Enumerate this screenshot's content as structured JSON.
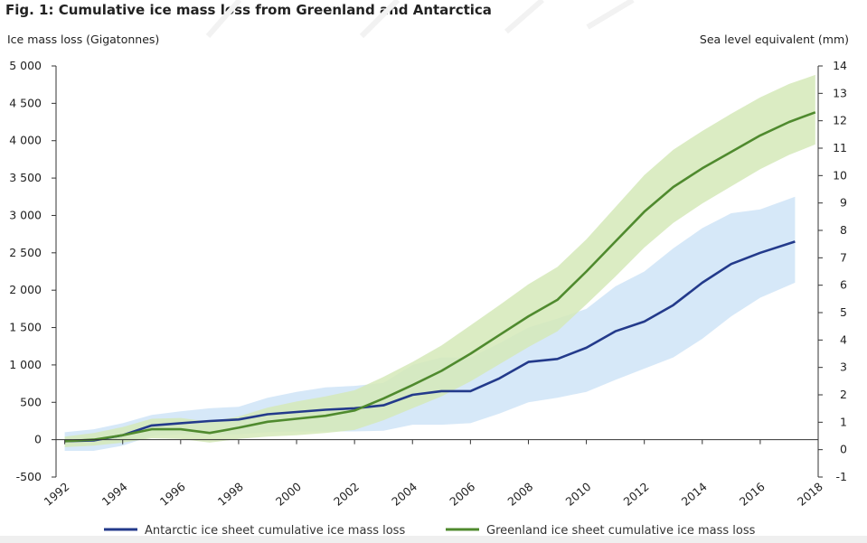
{
  "chart_data": {
    "type": "line",
    "title": "Fig. 1: Cumulative ice mass loss from Greenland and Antarctica",
    "ylabel_left": "Ice mass loss (Gigatonnes)",
    "ylabel_right": "Sea level equivalent (mm)",
    "xlim": [
      1991.7,
      2018
    ],
    "ylim": [
      -500,
      5000
    ],
    "ylim_right": [
      -1,
      14
    ],
    "x_ticks": [
      1992,
      1994,
      1996,
      1998,
      2000,
      2002,
      2004,
      2006,
      2008,
      2010,
      2012,
      2014,
      2016,
      2018
    ],
    "x_tick_labels": [
      "1992",
      "1994",
      "1996",
      "1998",
      "2000",
      "2002",
      "2004",
      "2006",
      "2008",
      "2010",
      "2012",
      "2014",
      "2016",
      "2018"
    ],
    "y_ticks": [
      -500,
      0,
      500,
      1000,
      1500,
      2000,
      2500,
      3000,
      3500,
      4000,
      4500,
      5000
    ],
    "y_tick_labels": [
      "-500",
      "0",
      "500",
      "1 000",
      "1 500",
      "2 000",
      "2 500",
      "3 000",
      "3 500",
      "4 000",
      "4 500",
      "5 000"
    ],
    "y_ticks_right": [
      -1,
      0,
      1,
      2,
      3,
      4,
      5,
      6,
      7,
      8,
      9,
      10,
      11,
      12,
      13,
      14
    ],
    "y_tick_labels_right": [
      "-1",
      "0",
      "1",
      "2",
      "3",
      "4",
      "5",
      "6",
      "7",
      "8",
      "9",
      "10",
      "11",
      "12",
      "13",
      "14"
    ],
    "series": [
      {
        "name": "Antarctic ice sheet cumulative ice mass loss",
        "color": "#233a8b",
        "band_color": "#cfe4f7",
        "x": [
          1992,
          1993,
          1994,
          1995,
          1996,
          1997,
          1998,
          1999,
          2000,
          2001,
          2002,
          2003,
          2004,
          2005,
          2006,
          2007,
          2008,
          2009,
          2010,
          2011,
          2012,
          2013,
          2014,
          2015,
          2016,
          2017.2
        ],
        "values": [
          -20,
          -10,
          60,
          190,
          220,
          250,
          270,
          340,
          370,
          400,
          420,
          460,
          600,
          650,
          650,
          820,
          1040,
          1080,
          1230,
          1450,
          1580,
          1800,
          2100,
          2350,
          2500,
          2650
        ],
        "lower": [
          -150,
          -150,
          -80,
          50,
          70,
          70,
          70,
          100,
          110,
          110,
          110,
          120,
          200,
          200,
          220,
          350,
          500,
          560,
          640,
          800,
          950,
          1100,
          1350,
          1650,
          1900,
          2100
        ],
        "upper": [
          100,
          140,
          220,
          330,
          380,
          420,
          440,
          560,
          640,
          700,
          720,
          760,
          1000,
          1100,
          1100,
          1290,
          1500,
          1620,
          1750,
          2050,
          2250,
          2560,
          2830,
          3030,
          3080,
          3250
        ]
      },
      {
        "name": "Greenland ice sheet cumulative ice mass loss",
        "color": "#4f8a2e",
        "band_color": "#d5e9b8",
        "x": [
          1992,
          1993,
          1994,
          1995,
          1996,
          1997,
          1998,
          1999,
          2000,
          2001,
          2002,
          2003,
          2004,
          2005,
          2006,
          2007,
          2008,
          2009,
          2010,
          2011,
          2012,
          2013,
          2014,
          2015,
          2016,
          2017,
          2017.9
        ],
        "values": [
          -20,
          0,
          60,
          140,
          140,
          90,
          160,
          240,
          280,
          320,
          390,
          550,
          730,
          920,
          1150,
          1400,
          1650,
          1870,
          2250,
          2650,
          3050,
          3380,
          3630,
          3850,
          4070,
          4250,
          4380
        ],
        "lower": [
          -100,
          -80,
          -40,
          20,
          10,
          -40,
          10,
          40,
          60,
          90,
          130,
          260,
          420,
          580,
          780,
          1010,
          1240,
          1450,
          1810,
          2180,
          2570,
          2900,
          3160,
          3390,
          3620,
          3810,
          3950
        ],
        "upper": [
          40,
          90,
          170,
          280,
          290,
          240,
          310,
          430,
          510,
          580,
          660,
          840,
          1040,
          1260,
          1530,
          1800,
          2080,
          2310,
          2680,
          3110,
          3540,
          3880,
          4130,
          4360,
          4580,
          4760,
          4880
        ]
      }
    ],
    "legend": {
      "position": "bottom",
      "entries": [
        "Antarctic ice sheet cumulative ice mass loss",
        "Greenland ice sheet cumulative ice mass loss"
      ]
    },
    "grid": false
  }
}
